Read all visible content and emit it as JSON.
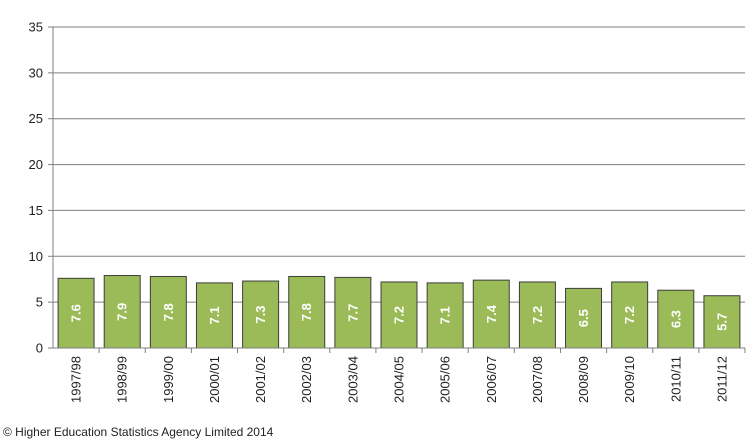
{
  "chart_data": {
    "type": "bar",
    "categories": [
      "1997/98",
      "1998/99",
      "1999/00",
      "2000/01",
      "2001/02",
      "2002/03",
      "2003/04",
      "2004/05",
      "2005/06",
      "2006/07",
      "2007/08",
      "2008/09",
      "2009/10",
      "2010/11",
      "2011/12"
    ],
    "values": [
      7.6,
      7.9,
      7.8,
      7.1,
      7.3,
      7.8,
      7.7,
      7.2,
      7.1,
      7.4,
      7.2,
      6.5,
      7.2,
      6.3,
      5.7
    ],
    "data_labels": [
      "7.6",
      "7.9",
      "7.8",
      "7.1",
      "7.3",
      "7.8",
      "7.7",
      "7.2",
      "7.1",
      "7.4",
      "7.2",
      "6.5",
      "7.2",
      "6.3",
      "5.7"
    ],
    "ylim": [
      0,
      35
    ],
    "yticks": [
      0,
      5,
      10,
      15,
      20,
      25,
      30,
      35
    ],
    "grid": true,
    "bar_color": "#9bbb59",
    "bar_edge_color": "#3d3d3d",
    "label_color": "#ffffff"
  },
  "footer": {
    "credit": "© Higher Education Statistics Agency Limited 2014"
  }
}
